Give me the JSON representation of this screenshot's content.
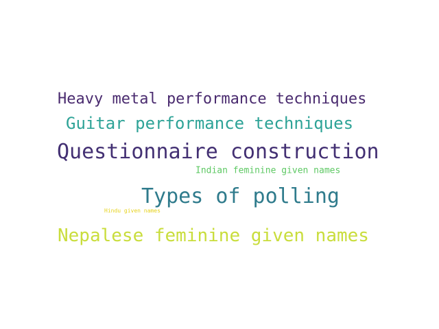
{
  "words": [
    {
      "text": "Heavy metal performance techniques",
      "color": "#4a2b6f"
    },
    {
      "text": "Guitar performance techniques",
      "color": "#2ea397"
    },
    {
      "text": "Questionnaire construction",
      "color": "#433073"
    },
    {
      "text": "Indian feminine given names",
      "color": "#5dc863"
    },
    {
      "text": "Types of polling",
      "color": "#2f7b8c"
    },
    {
      "text": "Hindu given names",
      "color": "#e6d21c"
    },
    {
      "text": "Nepalese feminine given names",
      "color": "#c9dd3c"
    }
  ]
}
